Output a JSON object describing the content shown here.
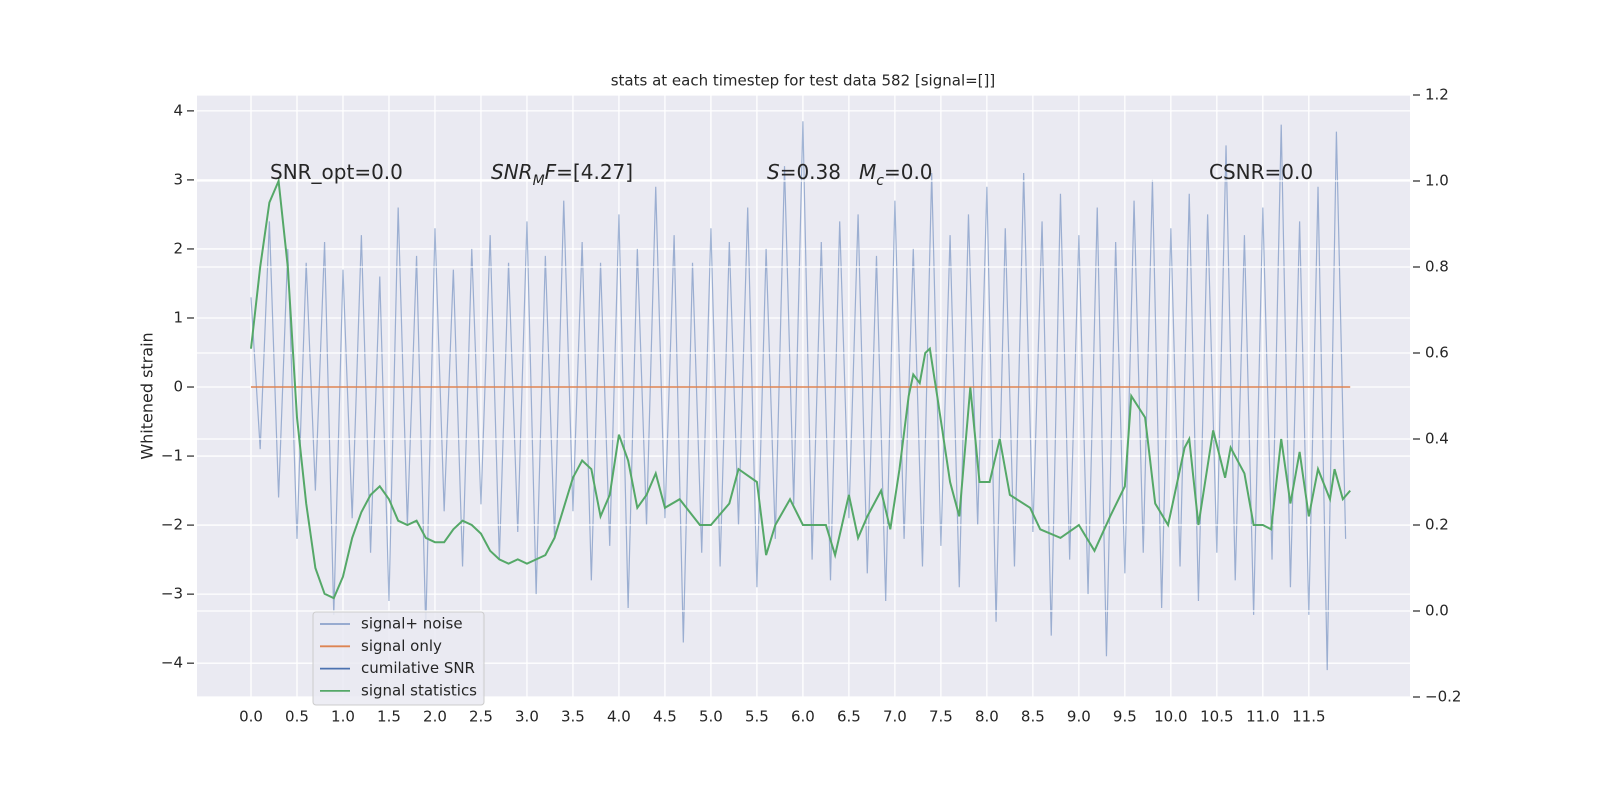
{
  "chart_data": {
    "type": "line",
    "title": "stats at each timestep for test data 582 [signal=[]]",
    "ylabel": "Whitened strain",
    "annotations": [
      [
        {
          "text": "SNR_opt=0.0",
          "style": "normal"
        }
      ],
      [
        {
          "text": "SNR",
          "style": "italic"
        },
        {
          "text": "M",
          "style": "sub-italic"
        },
        {
          "text": "F",
          "style": "italic"
        },
        {
          "text": "=[4.27]",
          "style": "normal"
        }
      ],
      [
        {
          "text": "S",
          "style": "italic"
        },
        {
          "text": "=0.38",
          "style": "normal"
        }
      ],
      [
        {
          "text": "M",
          "style": "italic"
        },
        {
          "text": "c",
          "style": "sub-italic"
        },
        {
          "text": "=0.0",
          "style": "normal"
        }
      ],
      [
        {
          "text": "CSNR=0.0",
          "style": "normal"
        }
      ]
    ],
    "xlim": [
      -0.587,
      12.6
    ],
    "ylim": [
      -4.49,
      4.23
    ],
    "y2lim": [
      -0.2,
      1.2
    ],
    "xticks": [
      {
        "value": 0,
        "label": "0.0"
      },
      0.5,
      {
        "value": 1,
        "label": "1.0"
      },
      1.5,
      {
        "value": 2,
        "label": "2.0"
      },
      2.5,
      {
        "value": 3,
        "label": "3.0"
      },
      3.5,
      {
        "value": 4,
        "label": "4.0"
      },
      4.5,
      {
        "value": 5,
        "label": "5.0"
      },
      5.5,
      {
        "value": 6,
        "label": "6.0"
      },
      6.5,
      {
        "value": 7,
        "label": "7.0"
      },
      7.5,
      {
        "value": 8,
        "label": "8.0"
      },
      8.5,
      {
        "value": 9,
        "label": "9.0"
      },
      9.5,
      {
        "value": 10,
        "label": "10.0"
      },
      10.5,
      {
        "value": 11,
        "label": "11.0"
      },
      11.5
    ],
    "yticks": [
      {
        "value": -4,
        "label": "−4"
      },
      {
        "value": -3,
        "label": "−3"
      },
      {
        "value": -2,
        "label": "−2"
      },
      {
        "value": -1,
        "label": "−1"
      },
      0,
      1,
      2,
      3,
      4
    ],
    "y2ticks": [
      {
        "value": -0.2,
        "label": "−0.2"
      },
      {
        "value": 0,
        "label": "0.0"
      },
      0.2,
      0.4,
      0.6,
      0.8,
      {
        "value": 1,
        "label": "1.0"
      },
      1.2
    ],
    "grid": true,
    "legend": "lower left",
    "series": [
      {
        "name": "signal+ noise",
        "color": "#4c72b0",
        "x": [
          0,
          0.1,
          0.2,
          0.3,
          0.4,
          0.5,
          0.6,
          0.7,
          0.8,
          0.9,
          1,
          1.1,
          1.2,
          1.3,
          1.4,
          1.5,
          1.6,
          1.7,
          1.8,
          1.9,
          2,
          2.1,
          2.2,
          2.3,
          2.4,
          2.5,
          2.6,
          2.7,
          2.8,
          2.9,
          3,
          3.1,
          3.2,
          3.3,
          3.4,
          3.5,
          3.6,
          3.7,
          3.8,
          3.9,
          4,
          4.1,
          4.2,
          4.3,
          4.4,
          4.5,
          4.6,
          4.7,
          4.8,
          4.9,
          5,
          5.1,
          5.2,
          5.3,
          5.4,
          5.5,
          5.6,
          5.7,
          5.8,
          5.9,
          6,
          6.1,
          6.2,
          6.3,
          6.4,
          6.5,
          6.6,
          6.7,
          6.8,
          6.9,
          7,
          7.1,
          7.2,
          7.3,
          7.4,
          7.5,
          7.6,
          7.7,
          7.8,
          7.9,
          8,
          8.1,
          8.2,
          8.3,
          8.4,
          8.5,
          8.6,
          8.7,
          8.8,
          8.9,
          9,
          9.1,
          9.2,
          9.3,
          9.4,
          9.5,
          9.6,
          9.7,
          9.8,
          9.9,
          10,
          10.1,
          10.2,
          10.3,
          10.4,
          10.5,
          10.6,
          10.7,
          10.8,
          10.9,
          11,
          11.1,
          11.2,
          11.3,
          11.4,
          11.5,
          11.6,
          11.7,
          11.8,
          11.9
        ],
        "values": [
          1.3,
          -0.9,
          2.4,
          -1.6,
          2.0,
          -2.2,
          1.8,
          -1.5,
          2.1,
          -3.3,
          1.7,
          -1.9,
          2.2,
          -2.4,
          1.6,
          -3.1,
          2.6,
          -2.0,
          1.9,
          -3.5,
          2.3,
          -1.8,
          1.7,
          -2.6,
          2.0,
          -1.7,
          2.2,
          -2.5,
          1.8,
          -2.1,
          2.4,
          -3.0,
          1.9,
          -2.2,
          2.7,
          -1.8,
          2.1,
          -2.8,
          1.8,
          -2.3,
          2.5,
          -3.2,
          2.0,
          -2.0,
          2.9,
          -1.9,
          2.2,
          -3.7,
          1.8,
          -2.4,
          2.3,
          -2.6,
          2.1,
          -2.0,
          2.6,
          -2.9,
          2.0,
          -2.2,
          3.2,
          -1.7,
          3.85,
          -2.5,
          2.1,
          -2.8,
          2.4,
          -1.9,
          2.5,
          -2.7,
          1.9,
          -3.1,
          2.7,
          -2.2,
          2.0,
          -2.6,
          3.1,
          -2.3,
          2.2,
          -2.9,
          2.5,
          -2.0,
          2.9,
          -3.4,
          2.3,
          -2.6,
          3.1,
          -2.1,
          2.4,
          -3.6,
          2.8,
          -2.5,
          2.2,
          -3.0,
          2.6,
          -3.9,
          2.1,
          -2.7,
          2.7,
          -2.4,
          3.0,
          -3.2,
          2.3,
          -2.6,
          2.8,
          -3.1,
          2.5,
          -2.4,
          3.5,
          -2.8,
          2.2,
          -3.3,
          2.6,
          -2.5,
          3.8,
          -2.9,
          2.4,
          -3.3,
          2.9,
          -4.1,
          3.7,
          -2.2
        ]
      },
      {
        "name": "signal only",
        "color": "#dd8452",
        "x": [
          0,
          11.95
        ],
        "values": [
          0,
          0
        ]
      },
      {
        "name": "cumilative SNR",
        "color": "#4c72b0",
        "x": [],
        "values": []
      },
      {
        "name": "signal statistics",
        "color": "#55a868",
        "axis": "y2",
        "x": [
          0,
          0.1,
          0.2,
          0.3,
          0.4,
          0.5,
          0.6,
          0.7,
          0.8,
          0.9,
          1,
          1.1,
          1.2,
          1.3,
          1.4,
          1.5,
          1.6,
          1.7,
          1.8,
          1.9,
          2,
          2.1,
          2.2,
          2.3,
          2.4,
          2.5,
          2.6,
          2.7,
          2.8,
          2.9,
          3,
          3.1,
          3.2,
          3.3,
          3.4,
          3.5,
          3.6,
          3.7,
          3.8,
          3.9,
          4,
          4.1,
          4.2,
          4.3,
          4.4,
          4.5,
          4.66,
          4.88,
          5,
          5.2,
          5.3,
          5.5,
          5.6,
          5.7,
          5.86,
          6,
          6.25,
          6.35,
          6.5,
          6.6,
          6.7,
          6.85,
          6.95,
          7.05,
          7.15,
          7.2,
          7.27,
          7.33,
          7.38,
          7.46,
          7.6,
          7.7,
          7.82,
          7.92,
          8.03,
          8.14,
          8.25,
          8.47,
          8.58,
          8.8,
          9,
          9.17,
          9.34,
          9.5,
          9.57,
          9.72,
          9.83,
          9.97,
          10.15,
          10.2,
          10.3,
          10.46,
          10.59,
          10.65,
          10.8,
          10.9,
          11,
          11.09,
          11.2,
          11.3,
          11.4,
          11.5,
          11.6,
          11.73,
          11.78,
          11.87,
          11.95
        ],
        "values": [
          0.61,
          0.8,
          0.95,
          1.0,
          0.8,
          0.45,
          0.25,
          0.1,
          0.04,
          0.03,
          0.08,
          0.17,
          0.23,
          0.27,
          0.29,
          0.26,
          0.21,
          0.2,
          0.21,
          0.17,
          0.16,
          0.16,
          0.19,
          0.21,
          0.2,
          0.18,
          0.14,
          0.12,
          0.11,
          0.12,
          0.11,
          0.12,
          0.13,
          0.17,
          0.24,
          0.31,
          0.35,
          0.33,
          0.22,
          0.27,
          0.41,
          0.35,
          0.24,
          0.27,
          0.32,
          0.24,
          0.26,
          0.2,
          0.2,
          0.25,
          0.33,
          0.3,
          0.13,
          0.2,
          0.26,
          0.2,
          0.2,
          0.13,
          0.27,
          0.17,
          0.22,
          0.28,
          0.19,
          0.33,
          0.5,
          0.55,
          0.53,
          0.6,
          0.61,
          0.5,
          0.3,
          0.22,
          0.52,
          0.3,
          0.3,
          0.4,
          0.27,
          0.24,
          0.19,
          0.17,
          0.2,
          0.14,
          0.22,
          0.29,
          0.5,
          0.45,
          0.25,
          0.2,
          0.38,
          0.4,
          0.2,
          0.42,
          0.31,
          0.38,
          0.32,
          0.2,
          0.2,
          0.19,
          0.4,
          0.25,
          0.37,
          0.22,
          0.33,
          0.26,
          0.33,
          0.26,
          0.28
        ]
      }
    ]
  }
}
